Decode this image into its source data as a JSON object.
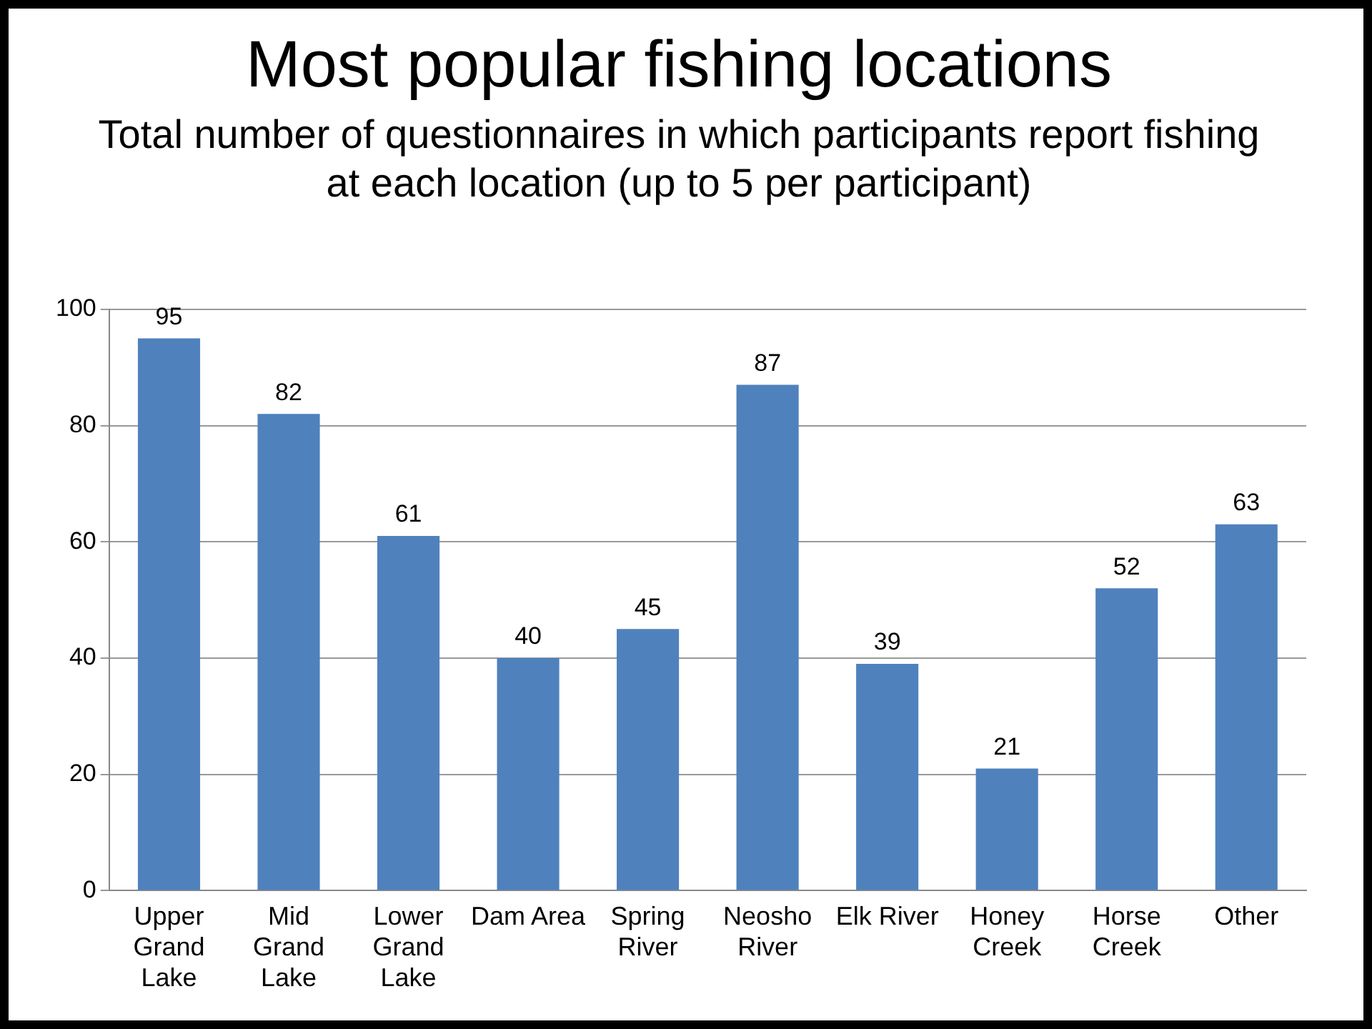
{
  "chart_data": {
    "type": "bar",
    "title": "Most popular fishing locations",
    "subtitle": "Total number of questionnaires in which participants report fishing at each location (up to 5 per participant)",
    "categories": [
      "Upper Grand Lake",
      "Mid Grand Lake",
      "Lower Grand Lake",
      "Dam Area",
      "Spring River",
      "Neosho River",
      "Elk River",
      "Honey Creek",
      "Horse Creek",
      "Other"
    ],
    "values": [
      95,
      82,
      61,
      40,
      45,
      87,
      39,
      21,
      52,
      63
    ],
    "color": "#4f81bd",
    "ylim": [
      0,
      100
    ],
    "yticks": [
      0,
      20,
      40,
      60,
      80,
      100
    ],
    "grid": "y",
    "legend": false,
    "data_labels": true
  }
}
